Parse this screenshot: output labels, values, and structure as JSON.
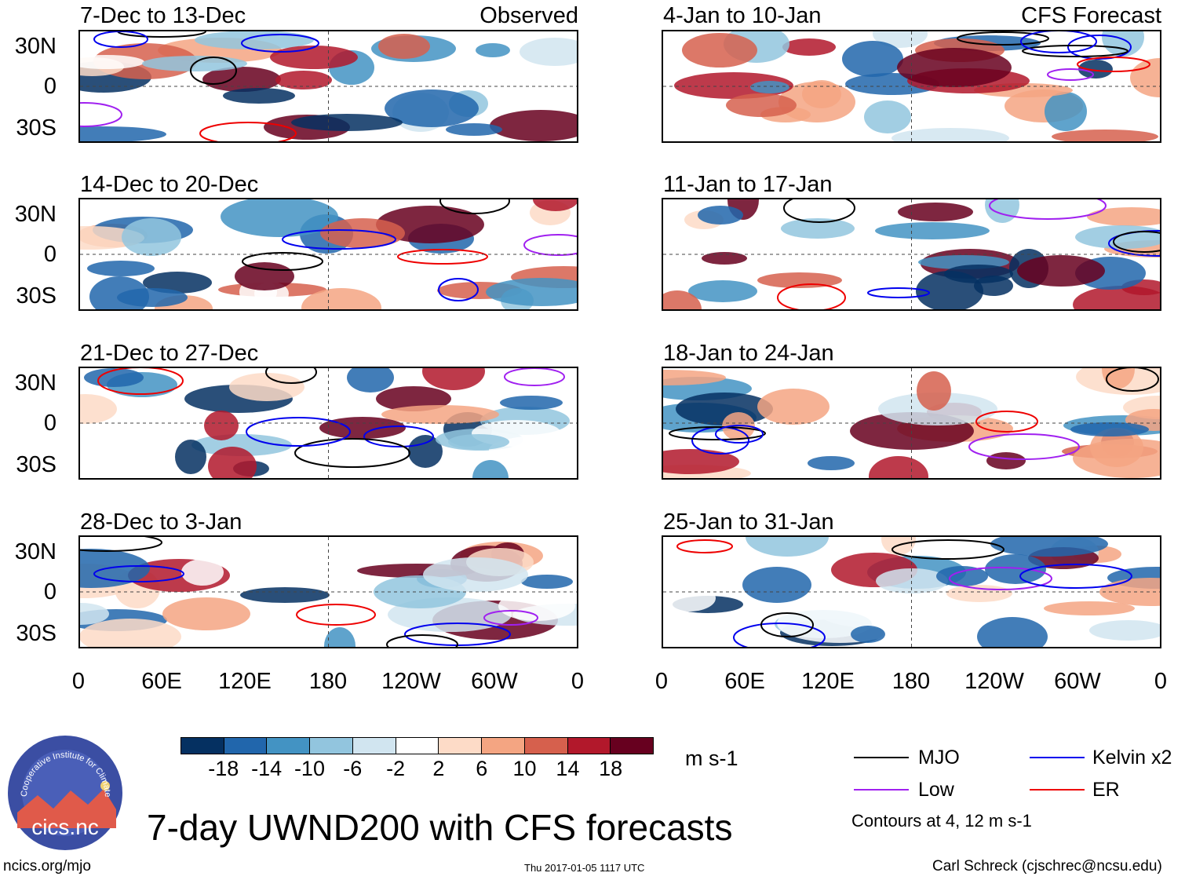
{
  "panels_observed": [
    {
      "title": "7-Dec to 13-Dec",
      "tag": "Observed"
    },
    {
      "title": "14-Dec to 20-Dec",
      "tag": ""
    },
    {
      "title": "21-Dec to 27-Dec",
      "tag": ""
    },
    {
      "title": "28-Dec to 3-Jan",
      "tag": ""
    }
  ],
  "panels_forecast": [
    {
      "title": "4-Jan to 10-Jan",
      "tag": "CFS Forecast"
    },
    {
      "title": "11-Jan to 17-Jan",
      "tag": ""
    },
    {
      "title": "18-Jan to 24-Jan",
      "tag": ""
    },
    {
      "title": "25-Jan to 31-Jan",
      "tag": ""
    }
  ],
  "lat_labels": [
    "30N",
    "0",
    "30S"
  ],
  "lon_labels": [
    "0",
    "60E",
    "120E",
    "180",
    "120W",
    "60W",
    "0"
  ],
  "colorbar": {
    "ticks": [
      "-18",
      "-14",
      "-10",
      "-6",
      "-2",
      "2",
      "6",
      "10",
      "14",
      "18"
    ],
    "colors": [
      "#053061",
      "#2166ac",
      "#4393c3",
      "#92c5de",
      "#d1e5f0",
      "#ffffff",
      "#fddbc7",
      "#f4a582",
      "#d6604d",
      "#b2182b",
      "#67001f"
    ],
    "units": "m s-1"
  },
  "legend": {
    "items": [
      {
        "label": "MJO",
        "color": "#000000"
      },
      {
        "label": "Kelvin x2",
        "color": "#0000ee"
      },
      {
        "label": "Low",
        "color": "#a020f0"
      },
      {
        "label": "ER",
        "color": "#ee0000"
      }
    ],
    "note": "Contours at 4, 12 m s-1"
  },
  "logo": {
    "text": "cics.nc",
    "ring_text": "Cooperative Institute for Climate and Satellites"
  },
  "main_title": "7-day UWND200 with CFS forecasts",
  "footer": {
    "url": "ncics.org/mjo",
    "timestamp": "Thu 2017-01-05 1117 UTC",
    "credit": "Carl Schreck (cjschrec@ncsu.edu)"
  }
}
